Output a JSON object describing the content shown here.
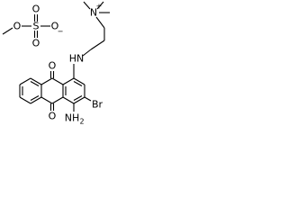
{
  "atoms": [
    {
      "label": "O"
    },
    {
      "label": "S"
    },
    {
      "label": "O"
    },
    {
      "label": "O"
    },
    {
      "label": "O",
      "charge": "−"
    },
    {
      "label": "N",
      "charge": "+"
    },
    {
      "label": "HN"
    },
    {
      "label": "Br"
    },
    {
      "label": "NH",
      "subscript": "2"
    },
    {
      "label": "O"
    },
    {
      "label": "O"
    }
  ]
}
